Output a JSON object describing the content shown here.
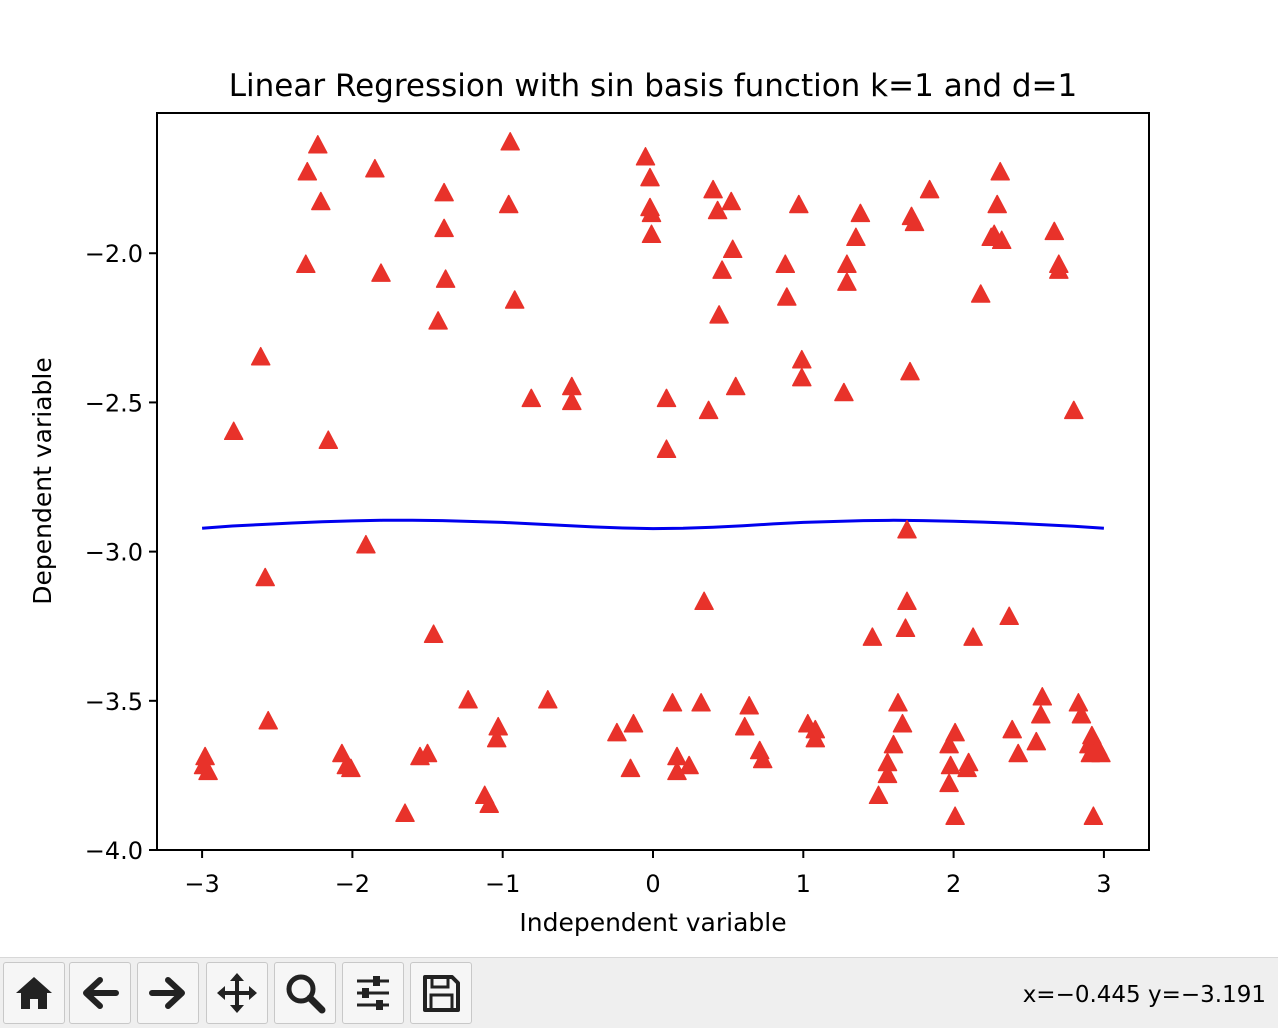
{
  "chart_data": {
    "type": "scatter",
    "title": "Linear Regression with sin basis function k=1 and d=1",
    "xlabel": "Independent variable",
    "ylabel": "Dependent variable",
    "xlim": [
      -3.3,
      3.3
    ],
    "ylim": [
      -4.0,
      -1.53
    ],
    "xticks": [
      -3,
      -2,
      -1,
      0,
      1,
      2,
      3
    ],
    "xtick_labels": [
      "−3",
      "−2",
      "−1",
      "0",
      "1",
      "2",
      "3"
    ],
    "yticks": [
      -4.0,
      -3.5,
      -3.0,
      -2.5,
      -2.0
    ],
    "ytick_labels": [
      "−4.0",
      "−3.5",
      "−3.0",
      "−2.5",
      "−2.0"
    ],
    "marker_color": "#e8322a",
    "line_color": "#0000ee",
    "points": [
      [
        -2.23,
        -1.64
      ],
      [
        -2.3,
        -1.73
      ],
      [
        -2.21,
        -1.83
      ],
      [
        -1.85,
        -1.72
      ],
      [
        -2.31,
        -2.04
      ],
      [
        -1.81,
        -2.07
      ],
      [
        -1.39,
        -1.8
      ],
      [
        -1.39,
        -1.92
      ],
      [
        -1.38,
        -2.09
      ],
      [
        -1.43,
        -2.23
      ],
      [
        -2.61,
        -2.35
      ],
      [
        -2.79,
        -2.6
      ],
      [
        -2.16,
        -2.63
      ],
      [
        -0.95,
        -1.63
      ],
      [
        -0.96,
        -1.84
      ],
      [
        -0.92,
        -2.16
      ],
      [
        -0.81,
        -2.49
      ],
      [
        -0.54,
        -2.45
      ],
      [
        -0.54,
        -2.5
      ],
      [
        -0.05,
        -1.68
      ],
      [
        -0.02,
        -1.75
      ],
      [
        -0.02,
        -1.85
      ],
      [
        -0.01,
        -1.87
      ],
      [
        -0.01,
        -1.94
      ],
      [
        0.09,
        -2.49
      ],
      [
        0.09,
        -2.66
      ],
      [
        0.37,
        -2.53
      ],
      [
        0.4,
        -1.79
      ],
      [
        0.43,
        -1.86
      ],
      [
        0.52,
        -1.83
      ],
      [
        0.53,
        -1.99
      ],
      [
        0.46,
        -2.06
      ],
      [
        0.44,
        -2.21
      ],
      [
        0.55,
        -2.45
      ],
      [
        0.88,
        -2.04
      ],
      [
        0.89,
        -2.15
      ],
      [
        0.97,
        -1.84
      ],
      [
        0.99,
        -2.36
      ],
      [
        0.99,
        -2.42
      ],
      [
        1.38,
        -1.87
      ],
      [
        1.35,
        -1.95
      ],
      [
        1.29,
        -2.04
      ],
      [
        1.29,
        -2.1
      ],
      [
        1.27,
        -2.47
      ],
      [
        1.72,
        -1.88
      ],
      [
        1.74,
        -1.9
      ],
      [
        1.84,
        -1.79
      ],
      [
        2.31,
        -1.73
      ],
      [
        2.29,
        -1.84
      ],
      [
        2.27,
        -1.94
      ],
      [
        2.25,
        -1.95
      ],
      [
        2.32,
        -1.96
      ],
      [
        2.18,
        -2.14
      ],
      [
        1.71,
        -2.4
      ],
      [
        2.67,
        -1.93
      ],
      [
        2.7,
        -2.04
      ],
      [
        2.7,
        -2.06
      ],
      [
        2.8,
        -2.53
      ],
      [
        1.69,
        -2.93
      ],
      [
        -2.58,
        -3.09
      ],
      [
        -1.91,
        -2.98
      ],
      [
        -1.46,
        -3.28
      ],
      [
        0.34,
        -3.17
      ],
      [
        1.69,
        -3.17
      ],
      [
        1.68,
        -3.26
      ],
      [
        1.46,
        -3.29
      ],
      [
        2.13,
        -3.29
      ],
      [
        2.37,
        -3.22
      ],
      [
        -2.98,
        -3.69
      ],
      [
        -2.99,
        -3.72
      ],
      [
        -2.96,
        -3.74
      ],
      [
        -2.56,
        -3.57
      ],
      [
        -2.07,
        -3.68
      ],
      [
        -2.04,
        -3.72
      ],
      [
        -2.01,
        -3.73
      ],
      [
        -1.65,
        -3.88
      ],
      [
        -1.55,
        -3.69
      ],
      [
        -1.5,
        -3.68
      ],
      [
        -1.23,
        -3.5
      ],
      [
        -1.12,
        -3.82
      ],
      [
        -1.09,
        -3.85
      ],
      [
        -1.03,
        -3.59
      ],
      [
        -1.04,
        -3.63
      ],
      [
        -0.7,
        -3.5
      ],
      [
        -0.24,
        -3.61
      ],
      [
        -0.13,
        -3.58
      ],
      [
        -0.15,
        -3.73
      ],
      [
        0.13,
        -3.51
      ],
      [
        0.16,
        -3.69
      ],
      [
        0.16,
        -3.74
      ],
      [
        0.24,
        -3.72
      ],
      [
        0.32,
        -3.51
      ],
      [
        0.61,
        -3.59
      ],
      [
        0.64,
        -3.52
      ],
      [
        0.71,
        -3.67
      ],
      [
        0.73,
        -3.7
      ],
      [
        1.03,
        -3.58
      ],
      [
        1.08,
        -3.6
      ],
      [
        1.08,
        -3.63
      ],
      [
        1.5,
        -3.82
      ],
      [
        1.56,
        -3.71
      ],
      [
        1.56,
        -3.75
      ],
      [
        1.6,
        -3.65
      ],
      [
        1.63,
        -3.51
      ],
      [
        1.66,
        -3.58
      ],
      [
        1.97,
        -3.65
      ],
      [
        1.98,
        -3.72
      ],
      [
        1.97,
        -3.78
      ],
      [
        2.01,
        -3.61
      ],
      [
        2.1,
        -3.71
      ],
      [
        2.09,
        -3.73
      ],
      [
        2.01,
        -3.89
      ],
      [
        2.39,
        -3.6
      ],
      [
        2.43,
        -3.68
      ],
      [
        2.55,
        -3.64
      ],
      [
        2.59,
        -3.49
      ],
      [
        2.58,
        -3.55
      ],
      [
        2.83,
        -3.51
      ],
      [
        2.85,
        -3.55
      ],
      [
        2.9,
        -3.65
      ],
      [
        2.92,
        -3.62
      ],
      [
        2.91,
        -3.68
      ],
      [
        2.96,
        -3.66
      ],
      [
        2.98,
        -3.68
      ],
      [
        2.93,
        -3.89
      ]
    ],
    "line": [
      [
        -3.0,
        -2.922
      ],
      [
        -2.8,
        -2.914
      ],
      [
        -2.6,
        -2.909
      ],
      [
        -2.4,
        -2.904
      ],
      [
        -2.2,
        -2.9
      ],
      [
        -2.0,
        -2.897
      ],
      [
        -1.8,
        -2.895
      ],
      [
        -1.6,
        -2.895
      ],
      [
        -1.4,
        -2.896
      ],
      [
        -1.2,
        -2.899
      ],
      [
        -1.0,
        -2.902
      ],
      [
        -0.8,
        -2.907
      ],
      [
        -0.6,
        -2.912
      ],
      [
        -0.4,
        -2.917
      ],
      [
        -0.2,
        -2.921
      ],
      [
        0.0,
        -2.923
      ],
      [
        0.2,
        -2.922
      ],
      [
        0.4,
        -2.918
      ],
      [
        0.6,
        -2.913
      ],
      [
        0.8,
        -2.907
      ],
      [
        1.0,
        -2.902
      ],
      [
        1.2,
        -2.899
      ],
      [
        1.4,
        -2.896
      ],
      [
        1.6,
        -2.895
      ],
      [
        1.8,
        -2.896
      ],
      [
        2.0,
        -2.898
      ],
      [
        2.2,
        -2.901
      ],
      [
        2.4,
        -2.905
      ],
      [
        2.6,
        -2.91
      ],
      [
        2.8,
        -2.915
      ],
      [
        3.0,
        -2.922
      ]
    ]
  },
  "toolbar": {
    "buttons": [
      {
        "name": "home-button",
        "icon": "home-icon"
      },
      {
        "name": "back-button",
        "icon": "arrow-left-icon"
      },
      {
        "name": "forward-button",
        "icon": "arrow-right-icon"
      },
      {
        "name": "pan-button",
        "icon": "move-icon"
      },
      {
        "name": "zoom-button",
        "icon": "magnifier-icon"
      },
      {
        "name": "configure-subplots-button",
        "icon": "sliders-icon"
      },
      {
        "name": "save-button",
        "icon": "floppy-disk-icon"
      }
    ],
    "coordinates": "x=−0.445 y=−3.191"
  }
}
